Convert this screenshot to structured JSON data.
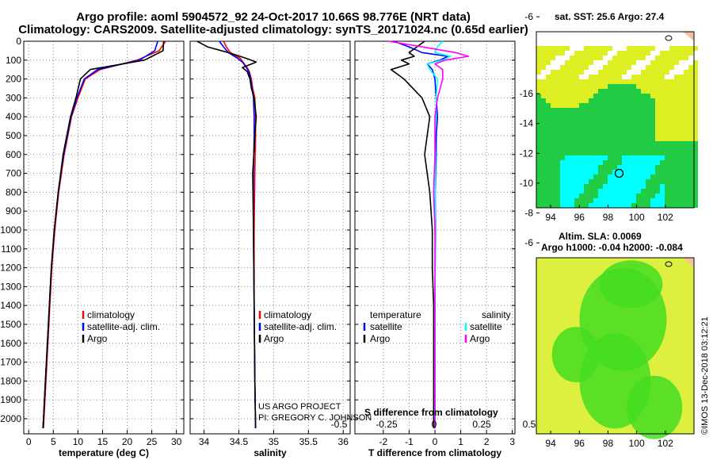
{
  "header": {
    "title_line1": "Argo profile: aoml 5904572_92 24-Oct-2017 10.66S 98.776E (NRT data)",
    "title_line2": "Climatology: CARS2009. Satellite-adjusted climatology: synTS_20171024.nc (0.65d earlier)"
  },
  "maps": {
    "sst_title": "sat. SST: 25.6 Argo: 27.4",
    "sla_title1": "Altim. SLA: 0.0069",
    "sla_title2": "Argo h1000: -0.04 h2000: -0.084",
    "lat_ticks": [
      -6,
      -8,
      -10,
      -12,
      -14,
      -16
    ],
    "lon_ticks": [
      94,
      96,
      98,
      100,
      102
    ],
    "float_lon": 98.776,
    "float_lat": -10.66
  },
  "credit": "©IMOS 13-Dec-2018 03:12:21",
  "project_lines": [
    "US ARGO PROJECT",
    "PI: GREGORY C. JOHNSON"
  ],
  "colors": {
    "climatology": "#ff0000",
    "satellite": "#0000ff",
    "argo": "#000000",
    "sal_satellite": "#00ffff",
    "sal_argo": "#ff00ff",
    "sst_cyan": "#00ffff",
    "sst_green": "#22cc44",
    "sst_yellow": "#ddee22",
    "sla_green": "#44dd22",
    "sla_yellow": "#ddf040"
  },
  "chart_data": [
    {
      "type": "line",
      "name": "temperature",
      "xlabel": "temperature (deg C)",
      "ylabel": "",
      "xlim": [
        -1,
        31.5
      ],
      "ylim": [
        2080,
        0
      ],
      "xticks": [
        0,
        5,
        10,
        15,
        20,
        25,
        30
      ],
      "yticks": [
        0,
        100,
        200,
        300,
        400,
        500,
        600,
        700,
        800,
        900,
        1000,
        1100,
        1200,
        1300,
        1400,
        1500,
        1600,
        1700,
        1800,
        1900,
        2000
      ],
      "legend": [
        "climatology",
        "satellite-adj. clim.",
        "Argo"
      ],
      "depth": [
        0,
        50,
        100,
        150,
        200,
        300,
        400,
        600,
        800,
        1000,
        1200,
        1400,
        1600,
        1800,
        2000,
        2050
      ],
      "series": [
        {
          "name": "climatology",
          "values": [
            27.8,
            26.5,
            22,
            14.5,
            11.5,
            10,
            8.7,
            7.2,
            6.1,
            5.3,
            4.7,
            4.3,
            3.9,
            3.5,
            3.1,
            3.0
          ]
        },
        {
          "name": "satellite-adj. clim.",
          "values": [
            26.2,
            25.6,
            22.5,
            14,
            11.3,
            9.8,
            8.6,
            7.1,
            6.0,
            5.2,
            4.6,
            4.2,
            3.8,
            3.4,
            3.0,
            2.9
          ]
        },
        {
          "name": "Argo",
          "values": [
            27.4,
            27.3,
            23.5,
            12.5,
            10.5,
            9.6,
            8.5,
            7.0,
            6.0,
            5.2,
            4.6,
            4.2,
            3.8,
            3.4,
            3.0,
            2.9
          ]
        }
      ]
    },
    {
      "type": "line",
      "name": "salinity",
      "xlabel": "salinity",
      "xlim": [
        33.8,
        36.1
      ],
      "ylim": [
        2080,
        0
      ],
      "xticks": [
        34,
        34.5,
        35,
        35.5,
        36
      ],
      "legend": [
        "climatology",
        "satellite-adj. clim.",
        "Argo"
      ],
      "depth": [
        0,
        30,
        60,
        90,
        110,
        140,
        160,
        200,
        250,
        300,
        400,
        500,
        700,
        1000,
        1400,
        1800,
        2050
      ],
      "series": [
        {
          "name": "climatology",
          "values": [
            34.28,
            34.32,
            34.38,
            34.52,
            34.56,
            34.62,
            34.65,
            34.68,
            34.7,
            34.73,
            34.74,
            34.74,
            34.73,
            34.72,
            34.72,
            34.73,
            34.74
          ]
        },
        {
          "name": "satellite-adj. clim.",
          "values": [
            34.22,
            34.28,
            34.35,
            34.48,
            34.55,
            34.61,
            34.64,
            34.67,
            34.69,
            34.71,
            34.72,
            34.72,
            34.71,
            34.71,
            34.72,
            34.73,
            34.74
          ]
        },
        {
          "name": "Argo",
          "values": [
            33.9,
            34.05,
            34.35,
            34.6,
            34.75,
            34.55,
            34.62,
            34.66,
            34.68,
            34.72,
            34.75,
            34.73,
            34.7,
            34.71,
            34.72,
            34.73,
            34.74
          ]
        }
      ]
    },
    {
      "type": "line",
      "name": "differences",
      "xlabel": "T difference from climatology",
      "secondary_xlabel": "S difference from climatology",
      "xlim": [
        -3.1,
        3.1
      ],
      "ylim": [
        2080,
        0
      ],
      "xticks": [
        -2,
        -1,
        0,
        1,
        2,
        3
      ],
      "xtick_labels": [
        "-2",
        "-1",
        "0",
        "1",
        "2",
        "3"
      ],
      "secondary_xticks": [
        -0.5,
        -0.25,
        0,
        0.25,
        0.5
      ],
      "secondary_xtick_labels": [
        "-0.5",
        "-0.25",
        "0",
        "0.25",
        "0.5"
      ],
      "legend_temperature": [
        "temperature",
        "satellite",
        "Argo"
      ],
      "legend_salinity": [
        "salinity",
        "satellite",
        "Argo"
      ],
      "depth": [
        0,
        30,
        60,
        80,
        100,
        120,
        150,
        200,
        300,
        400,
        500,
        600,
        800,
        1000,
        1200,
        1400,
        1600,
        1800,
        2050
      ],
      "series": [
        {
          "name": "temperature satellite",
          "values": [
            -1.6,
            -1.0,
            -0.5,
            0.5,
            0.2,
            -0.3,
            -0.1,
            0.0,
            0.05,
            0.1,
            0.05,
            0.05,
            0.02,
            0.02,
            0.01,
            0.0,
            0.0,
            0.0,
            0.0
          ]
        },
        {
          "name": "temperature Argo",
          "values": [
            -0.4,
            -0.7,
            -1.0,
            -0.8,
            -1.3,
            -1.0,
            -1.7,
            -1.2,
            -0.5,
            -0.2,
            -0.3,
            -0.4,
            -0.2,
            -0.1,
            -0.1,
            -0.05,
            -0.05,
            -0.05,
            -0.05
          ]
        },
        {
          "name": "salinity satellite",
          "values": [
            0.3,
            0.1,
            0.0,
            0.6,
            0.3,
            -0.3,
            -0.2,
            0.1,
            0.05,
            0.05,
            0.0,
            0.02,
            0.02,
            0.01,
            0.01,
            0.0,
            0.0,
            0.0,
            0.0
          ]
        },
        {
          "name": "salinity Argo",
          "values": [
            -1.8,
            -0.5,
            0.8,
            1.3,
            0.4,
            0.0,
            0.3,
            0.3,
            0.1,
            0.0,
            0.0,
            0.0,
            -0.05,
            0.0,
            0.0,
            0.0,
            0.0,
            0.0,
            0.0
          ]
        }
      ]
    }
  ]
}
